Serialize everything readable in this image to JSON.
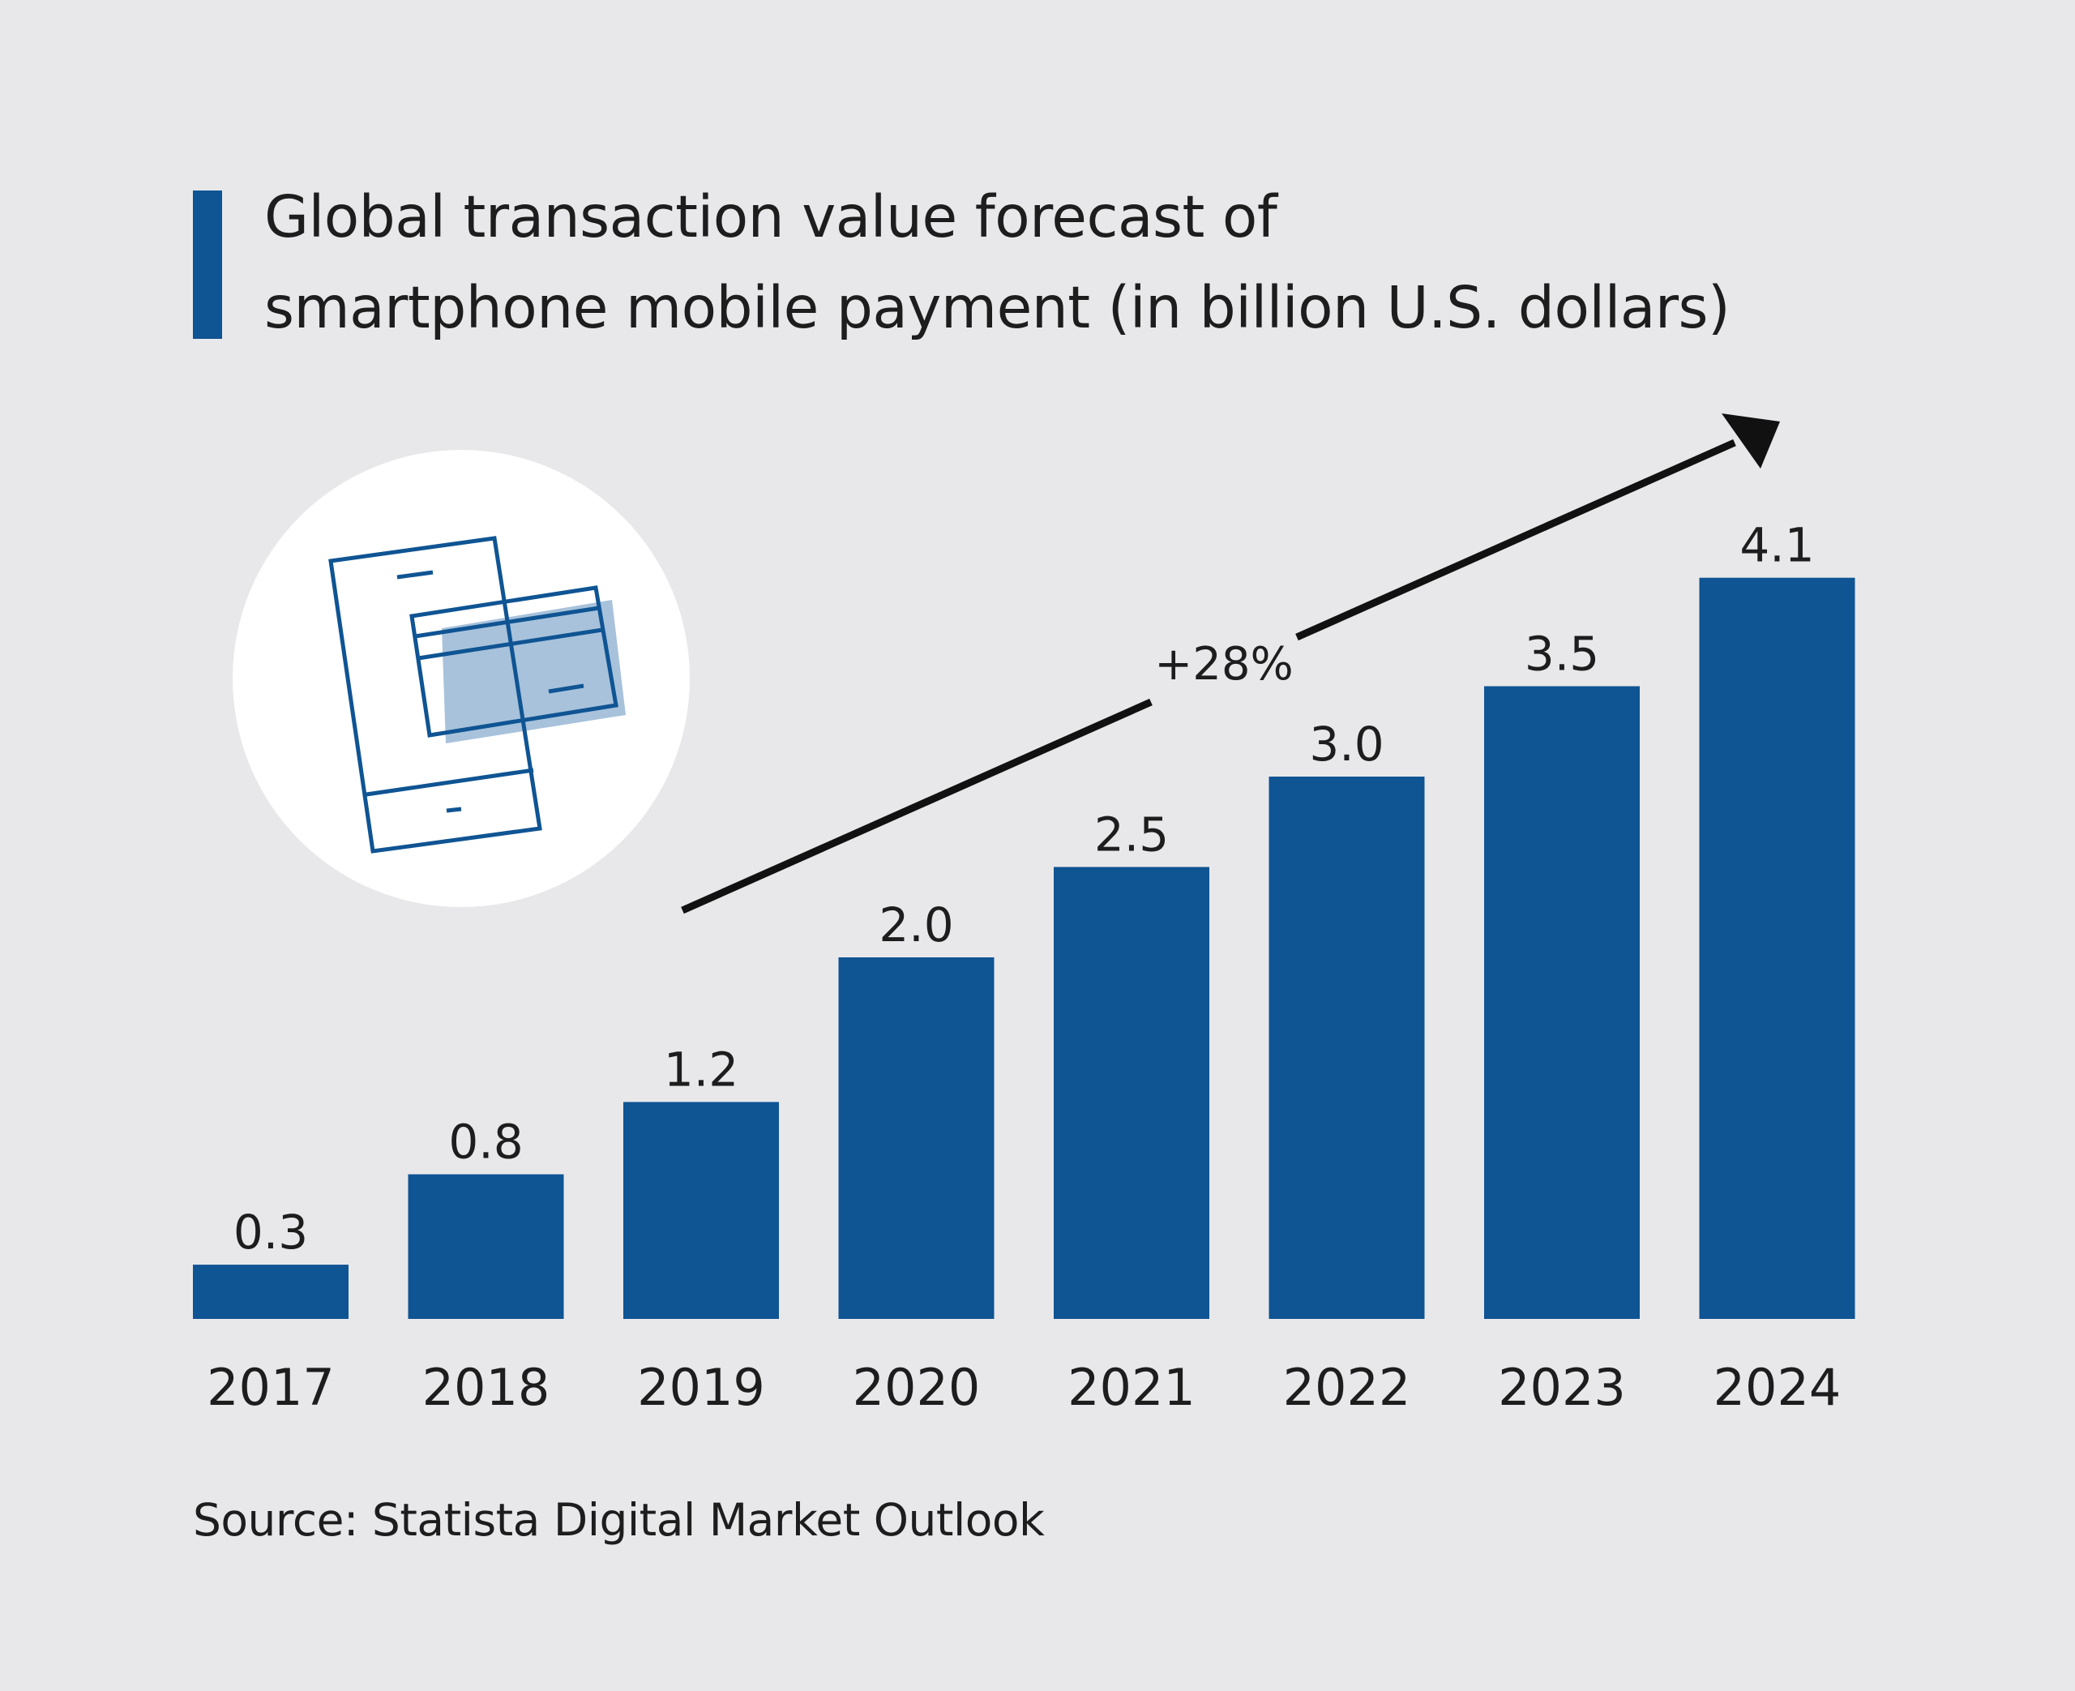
{
  "colors": {
    "background": "#e8e8ea",
    "bar": "#0f5493",
    "accent": "#0f5493",
    "icon_fill": "#a8c2db",
    "arrow": "#111111"
  },
  "title": {
    "line1": "Global transaction value forecast of",
    "line2": "smartphone mobile payment (in billion U.S. dollars)"
  },
  "icon": "phone-card-payment-icon",
  "growth": {
    "label": "+28%"
  },
  "source": "Source: Statista Digital Market Outlook",
  "chart_data": {
    "type": "bar",
    "title": "Global transaction value forecast of smartphone mobile payment (in billion U.S. dollars)",
    "categories": [
      "2017",
      "2018",
      "2019",
      "2020",
      "2021",
      "2022",
      "2023",
      "2024"
    ],
    "values": [
      0.3,
      0.8,
      1.2,
      2.0,
      2.5,
      3.0,
      3.5,
      4.1
    ],
    "value_labels": [
      "0.3",
      "0.8",
      "1.2",
      "2.0",
      "2.5",
      "3.0",
      "3.5",
      "4.1"
    ],
    "annotation": "+28%",
    "xlabel": "",
    "ylabel": "",
    "grid": false,
    "legend": "none"
  }
}
